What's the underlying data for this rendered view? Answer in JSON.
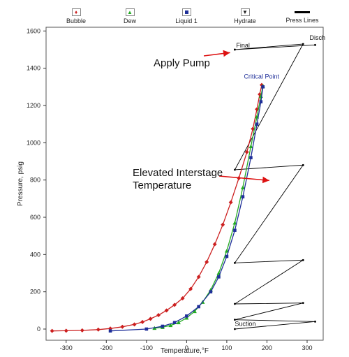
{
  "chart_data": {
    "type": "scatter",
    "xlabel": "Temperature,°F",
    "ylabel": "Pressure, psig",
    "xlim": [
      -350,
      340
    ],
    "ylim": [
      -60,
      1620
    ],
    "x_ticks": [
      -300,
      -200,
      -100,
      0,
      100,
      200,
      300
    ],
    "y_ticks": [
      0,
      200,
      400,
      600,
      800,
      1000,
      1200,
      1400,
      1600
    ],
    "legend": {
      "placement": "top",
      "entries": [
        {
          "label": "Bubble",
          "color": "#cc1f1f",
          "marker": "diamond"
        },
        {
          "label": "Dew",
          "color": "#22aa22",
          "marker": "triangle"
        },
        {
          "label": "Liquid 1",
          "color": "#1f2f99",
          "marker": "square"
        },
        {
          "label": "Hydrate",
          "color": "#222222",
          "marker": "triangle-down"
        },
        {
          "label": "Press Lines",
          "color": "#000000",
          "marker": "line"
        }
      ]
    },
    "series": [
      {
        "name": "Bubble",
        "color": "#cc1f1f",
        "x": [
          -335,
          -300,
          -260,
          -220,
          -190,
          -160,
          -130,
          -110,
          -90,
          -70,
          -50,
          -30,
          -10,
          10,
          30,
          50,
          70,
          90,
          110,
          130,
          150,
          165,
          175,
          182,
          187
        ],
        "y": [
          -10,
          -9,
          -7,
          -3,
          3,
          12,
          25,
          38,
          55,
          75,
          100,
          130,
          165,
          215,
          280,
          360,
          455,
          560,
          680,
          810,
          950,
          1075,
          1180,
          1260,
          1310
        ]
      },
      {
        "name": "Dew",
        "color": "#22aa22",
        "x": [
          -80,
          -60,
          -40,
          -20,
          0,
          20,
          40,
          60,
          80,
          100,
          120,
          140,
          160,
          175,
          185,
          190
        ],
        "y": [
          5,
          10,
          20,
          35,
          60,
          95,
          145,
          210,
          300,
          420,
          570,
          760,
          980,
          1140,
          1250,
          1305
        ]
      },
      {
        "name": "Liquid 1",
        "color": "#1f2f99",
        "x": [
          -190,
          -100,
          -60,
          -30,
          0,
          30,
          60,
          80,
          100,
          120,
          140,
          160,
          175,
          185,
          190
        ],
        "y": [
          -10,
          0,
          15,
          35,
          70,
          120,
          200,
          280,
          390,
          530,
          710,
          920,
          1100,
          1220,
          1300
        ]
      },
      {
        "name": "Press Lines",
        "color": "#000000",
        "x": [
          120,
          320,
          120,
          290,
          120,
          290,
          120,
          290,
          120,
          290,
          120,
          320,
          120
        ],
        "y": [
          0,
          40,
          50,
          140,
          135,
          370,
          355,
          880,
          855,
          1530,
          1500,
          1525,
          1500
        ]
      }
    ],
    "critical_point": {
      "label": "Critical Point",
      "x": 190,
      "y": 1310
    },
    "point_labels": [
      {
        "text": "Final",
        "x": 120,
        "y": 1500
      },
      {
        "text": "Disch",
        "x": 320,
        "y": 1530
      },
      {
        "text": "Suction",
        "x": 120,
        "y": 20
      }
    ],
    "annotations": [
      {
        "text": "Apply Pump",
        "arrow_to": {
          "x": 115,
          "y": 1495
        }
      },
      {
        "text": "Elevated Interstage",
        "line2": "Temperature",
        "arrow_to": {
          "x": 145,
          "y": 850
        }
      }
    ]
  }
}
